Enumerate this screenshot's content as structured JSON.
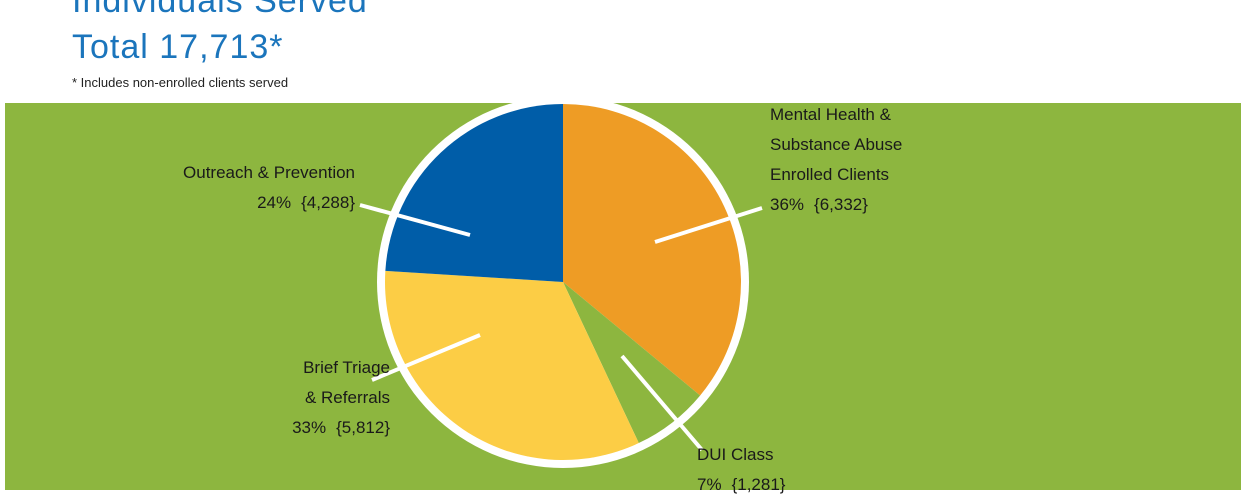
{
  "chart_data": {
    "type": "pie",
    "title": "Individuals Served",
    "subtitle": "Total 17,713*",
    "note": "* Includes non-enrolled clients served",
    "categories": [
      [
        "Mental Health &",
        "Substance Abuse",
        "Enrolled Clients"
      ],
      [
        "DUI Class"
      ],
      [
        "Brief Triage",
        "& Referrals"
      ],
      [
        "Outreach & Prevention"
      ]
    ],
    "values": [
      36,
      7,
      33,
      24
    ],
    "value_labels": [
      "36%",
      "7%",
      "33%",
      "24%"
    ],
    "counts": [
      "{6,332}",
      "{1,281}",
      "{5,812}",
      "{4,288}"
    ],
    "colors": [
      "#ee9c25",
      "#8db63f",
      "#fccd45",
      "#005da8"
    ],
    "background": "#8db63f"
  }
}
